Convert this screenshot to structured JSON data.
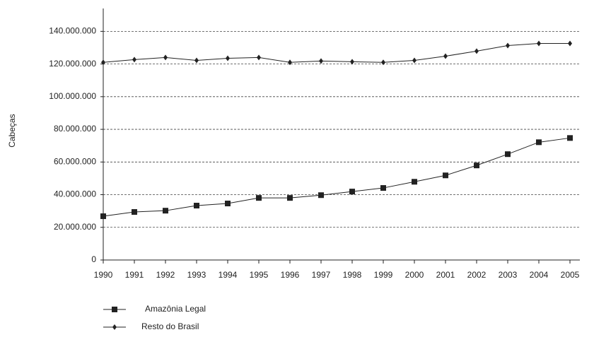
{
  "chart_data": {
    "type": "line",
    "y_label": "Cabeças",
    "categories": [
      "1990",
      "1991",
      "1992",
      "1993",
      "1994",
      "1995",
      "1996",
      "1997",
      "1998",
      "1999",
      "2000",
      "2001",
      "2002",
      "2003",
      "2004",
      "2005"
    ],
    "series": [
      {
        "name": "Amazônia Legal",
        "color": "#222222",
        "marker": "square",
        "values": [
          26800000,
          29400000,
          30200000,
          33300000,
          34600000,
          38000000,
          38000000,
          39700000,
          41900000,
          44100000,
          47900000,
          51800000,
          57900000,
          64800000,
          72100000,
          74700000
        ]
      },
      {
        "name": "Resto do Brasil",
        "color": "#222222",
        "marker": "diamond",
        "values": [
          121000000,
          122700000,
          124000000,
          122200000,
          123500000,
          124000000,
          121000000,
          121800000,
          121400000,
          121000000,
          122200000,
          124800000,
          127900000,
          131300000,
          132600000,
          132600000
        ]
      }
    ],
    "ylim": [
      0,
      154000000
    ],
    "yticks": [
      0,
      {
        "value": 20000000,
        "label": "20.000.000"
      },
      {
        "value": 40000000,
        "label": "40.000.000"
      },
      {
        "value": 60000000,
        "label": "60.000.000"
      },
      {
        "value": 80000000,
        "label": "80.000.000"
      },
      {
        "value": 100000000,
        "label": "100.000.000"
      },
      {
        "value": 120000000,
        "label": "120.000.000"
      },
      {
        "value": 140000000,
        "label": "140.000.000"
      }
    ],
    "grid": true,
    "legend": "bottom-left"
  }
}
